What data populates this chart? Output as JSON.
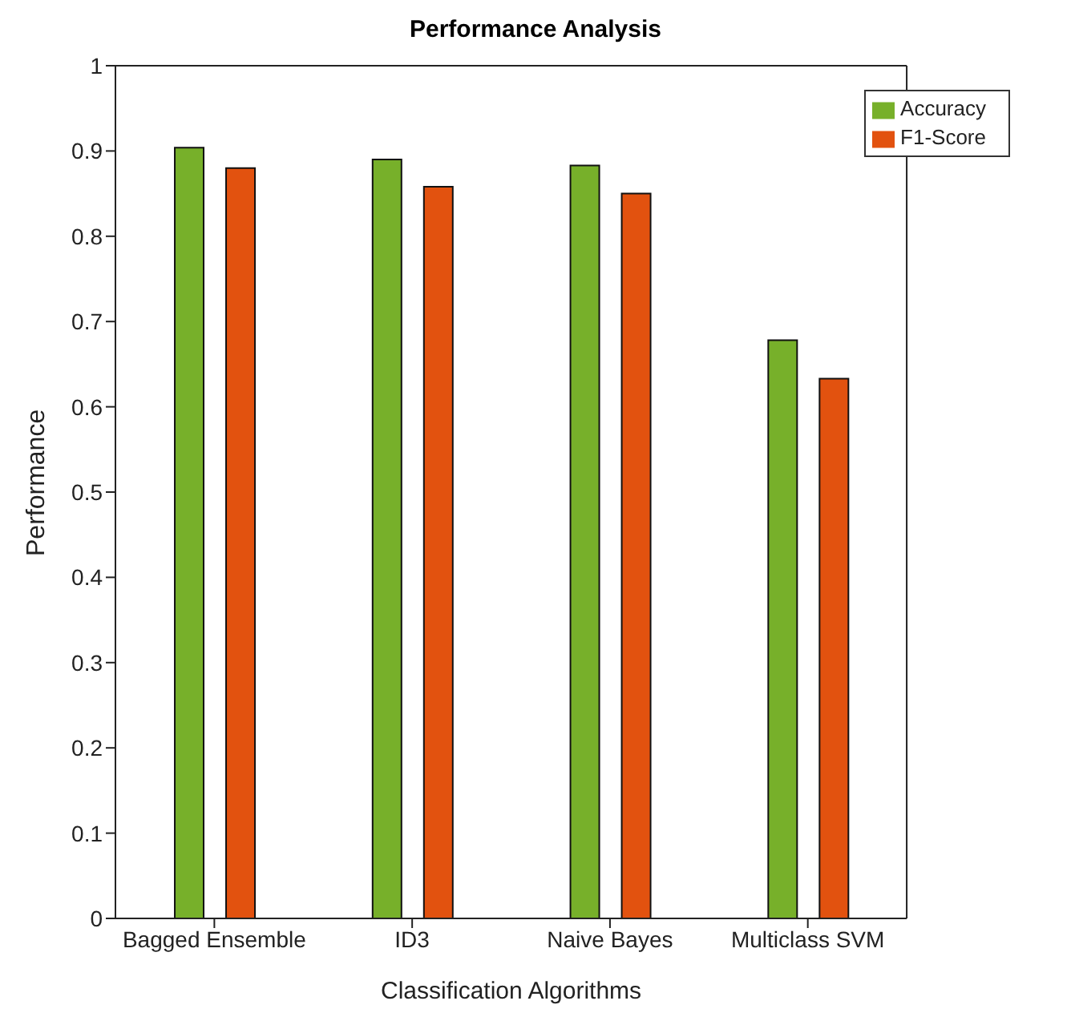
{
  "chart_data": {
    "type": "bar",
    "title": "Performance Analysis",
    "xlabel": "Classification Algorithms",
    "ylabel": "Performance",
    "categories": [
      "Bagged Ensemble",
      "ID3",
      "Naive Bayes",
      "Multiclass SVM"
    ],
    "series": [
      {
        "name": "Accuracy",
        "color": "#77b02a",
        "values": [
          0.904,
          0.89,
          0.883,
          0.678
        ]
      },
      {
        "name": "F1-Score",
        "color": "#e2520f",
        "values": [
          0.88,
          0.858,
          0.85,
          0.633
        ]
      }
    ],
    "ylim": [
      0,
      1
    ],
    "yticks": [
      0,
      0.1,
      0.2,
      0.3,
      0.4,
      0.5,
      0.6,
      0.7,
      0.8,
      0.9,
      1
    ],
    "grid": false,
    "legend": "top right"
  }
}
